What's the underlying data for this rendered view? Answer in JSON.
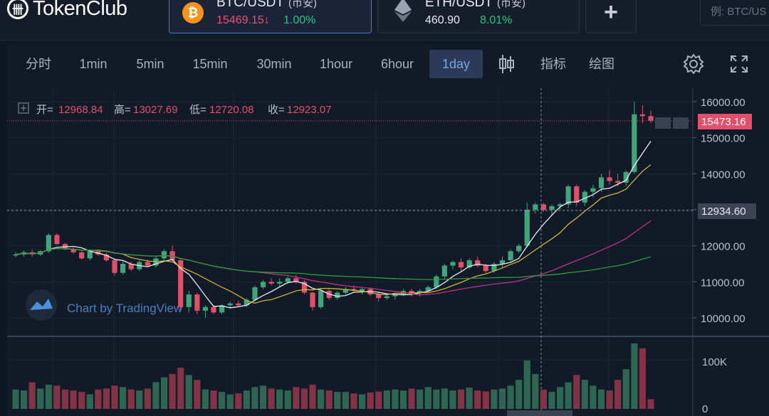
{
  "header": {
    "logo_mark": "卌",
    "logo_text": "TokenClub",
    "pairs": [
      {
        "symbol": "BTC/USDT",
        "market": "(币安)",
        "price": "15469.15",
        "arrow": "↓",
        "change": "1.00%",
        "price_color": "#f0506e",
        "active": true,
        "icon": "bitcoin-icon"
      },
      {
        "symbol": "ETH/USDT",
        "market": "(币安)",
        "price": "460.90",
        "arrow": "",
        "change": "8.01%",
        "price_color": "#e8ebf2",
        "active": false,
        "icon": "ethereum-icon"
      }
    ],
    "add_label": "+",
    "search_placeholder": "例: BTC/US"
  },
  "toolbar": {
    "intervals": [
      "分时",
      "1min",
      "5min",
      "15min",
      "30min",
      "1hour",
      "6hour",
      "1day"
    ],
    "selected": "1day",
    "indicator_label": "指标",
    "draw_label": "绘图"
  },
  "ohlc": {
    "open_label": "开=",
    "open": "12968.84",
    "high_label": "高=",
    "high": "13027.69",
    "low_label": "低=",
    "low": "12720.08",
    "close_label": "收=",
    "close": "12923.07"
  },
  "watermark": "Chart by TradingView",
  "colors": {
    "up": "#3fa57a",
    "down": "#e0506a",
    "ma_white": "#e8ebf2",
    "ma_yellow": "#c9b33a",
    "ma_purple": "#b8338a",
    "ma_green": "#28a03c"
  },
  "chart_data": {
    "type": "candlestick",
    "ylim": [
      9600,
      16300
    ],
    "price_ticks": [
      "16000.00",
      "15000.00",
      "14000.00",
      "13000.00",
      "12000.00",
      "11000.00",
      "10000.00"
    ],
    "last_price_label": "15473.16",
    "crosshair_price_label": "12934.60",
    "volume_tick_labels": [
      "100K",
      "0"
    ],
    "candles": [
      [
        11740,
        11820,
        11680,
        11760
      ],
      [
        11760,
        11880,
        11700,
        11820
      ],
      [
        11820,
        11900,
        11700,
        11760
      ],
      [
        11760,
        11880,
        11720,
        11850
      ],
      [
        11850,
        12350,
        11800,
        12300
      ],
      [
        12300,
        12360,
        12020,
        12050
      ],
      [
        12050,
        12080,
        11880,
        11900
      ],
      [
        11900,
        11950,
        11780,
        11820
      ],
      [
        11820,
        11850,
        11620,
        11650
      ],
      [
        11650,
        11880,
        11600,
        11850
      ],
      [
        11850,
        11900,
        11720,
        11760
      ],
      [
        11760,
        11800,
        11560,
        11600
      ],
      [
        11600,
        11660,
        11180,
        11250
      ],
      [
        11250,
        11560,
        11200,
        11500
      ],
      [
        11500,
        11560,
        11300,
        11350
      ],
      [
        11350,
        11600,
        11300,
        11550
      ],
      [
        11550,
        11620,
        11420,
        11450
      ],
      [
        11450,
        11700,
        11400,
        11650
      ],
      [
        11650,
        11900,
        11600,
        11850
      ],
      [
        11850,
        12000,
        11550,
        11600
      ],
      [
        11600,
        11650,
        10200,
        10300
      ],
      [
        10300,
        10750,
        10150,
        10650
      ],
      [
        10650,
        10700,
        10100,
        10200
      ],
      [
        10200,
        10350,
        10000,
        10300
      ],
      [
        10300,
        10350,
        10100,
        10150
      ],
      [
        10150,
        10380,
        10100,
        10350
      ],
      [
        10350,
        10450,
        10250,
        10400
      ],
      [
        10400,
        10480,
        10300,
        10350
      ],
      [
        10350,
        10550,
        10300,
        10500
      ],
      [
        10500,
        10900,
        10450,
        10850
      ],
      [
        10850,
        11050,
        10800,
        11000
      ],
      [
        11000,
        11100,
        10900,
        10950
      ],
      [
        10950,
        11100,
        10850,
        11000
      ],
      [
        11000,
        11150,
        10950,
        11100
      ],
      [
        11100,
        11200,
        10950,
        11000
      ],
      [
        11000,
        11050,
        10650,
        10700
      ],
      [
        10700,
        10720,
        10200,
        10300
      ],
      [
        10300,
        10800,
        10250,
        10750
      ],
      [
        10750,
        10800,
        10500,
        10550
      ],
      [
        10550,
        10750,
        10500,
        10700
      ],
      [
        10700,
        10850,
        10650,
        10800
      ],
      [
        10800,
        10900,
        10700,
        10750
      ],
      [
        10750,
        10850,
        10650,
        10800
      ],
      [
        10800,
        10850,
        10600,
        10650
      ],
      [
        10650,
        10720,
        10450,
        10550
      ],
      [
        10550,
        10650,
        10500,
        10600
      ],
      [
        10600,
        10700,
        10500,
        10650
      ],
      [
        10650,
        10800,
        10600,
        10750
      ],
      [
        10750,
        10800,
        10600,
        10700
      ],
      [
        10700,
        10800,
        10600,
        10750
      ],
      [
        10750,
        10900,
        10700,
        10850
      ],
      [
        10850,
        11200,
        10800,
        11150
      ],
      [
        11150,
        11500,
        11100,
        11450
      ],
      [
        11450,
        11600,
        11350,
        11550
      ],
      [
        11550,
        11650,
        11300,
        11400
      ],
      [
        11400,
        11650,
        11350,
        11600
      ],
      [
        11600,
        11700,
        11400,
        11450
      ],
      [
        11450,
        11500,
        11250,
        11300
      ],
      [
        11300,
        11550,
        11250,
        11500
      ],
      [
        11500,
        11700,
        11400,
        11600
      ],
      [
        11600,
        11900,
        11550,
        11850
      ],
      [
        11850,
        12050,
        11800,
        12000
      ],
      [
        12000,
        13200,
        11950,
        13000
      ],
      [
        13000,
        13200,
        12900,
        13150
      ],
      [
        13150,
        13200,
        12950,
        13000
      ],
      [
        13000,
        13150,
        12850,
        13100
      ],
      [
        13100,
        13200,
        13000,
        13150
      ],
      [
        13150,
        13700,
        13050,
        13650
      ],
      [
        13650,
        13700,
        13100,
        13200
      ],
      [
        13200,
        13550,
        13100,
        13500
      ],
      [
        13500,
        13700,
        13350,
        13600
      ],
      [
        13600,
        14000,
        13500,
        13900
      ],
      [
        13900,
        14100,
        13700,
        13800
      ],
      [
        13800,
        14000,
        13650,
        13750
      ],
      [
        13750,
        14100,
        13650,
        14050
      ],
      [
        14050,
        16000,
        14000,
        15650
      ],
      [
        15650,
        15900,
        15400,
        15600
      ],
      [
        15600,
        15750,
        15400,
        15470
      ]
    ],
    "volumes": [
      40,
      38,
      55,
      42,
      50,
      48,
      40,
      38,
      35,
      30,
      40,
      42,
      48,
      45,
      40,
      38,
      42,
      55,
      65,
      72,
      85,
      70,
      60,
      40,
      38,
      35,
      30,
      32,
      38,
      45,
      48,
      42,
      40,
      38,
      45,
      42,
      50,
      40,
      38,
      35,
      35,
      32,
      30,
      34,
      36,
      38,
      40,
      38,
      42,
      40,
      45,
      40,
      42,
      38,
      40,
      44,
      38,
      36,
      40,
      42,
      48,
      60,
      100,
      72,
      40,
      35,
      45,
      55,
      70,
      60,
      48,
      40,
      38,
      60,
      82,
      135,
      125,
      20
    ]
  }
}
